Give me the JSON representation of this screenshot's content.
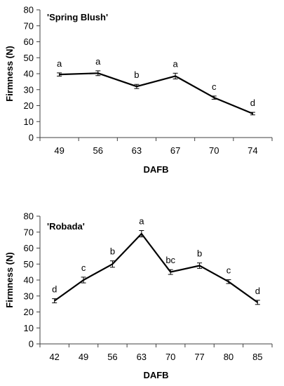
{
  "chart_data": [
    {
      "type": "line",
      "title": "'Spring Blush'",
      "xlabel": "DAFB",
      "ylabel": "Firmness (N)",
      "ylim": [
        0,
        80
      ],
      "yticks": [
        0,
        10,
        20,
        30,
        40,
        50,
        60,
        70,
        80
      ],
      "categories": [
        "49",
        "56",
        "63",
        "67",
        "70",
        "74"
      ],
      "values": [
        39.5,
        40.3,
        32,
        38.5,
        25,
        15
      ],
      "errors": [
        1.0,
        1.5,
        1.3,
        1.8,
        1.0,
        0.8
      ],
      "labels": [
        "a",
        "a",
        "b",
        "a",
        "c",
        "d"
      ],
      "grid": false,
      "legend": "none"
    },
    {
      "type": "line",
      "title": "'Robada'",
      "xlabel": "DAFB",
      "ylabel": "Firmness (N)",
      "ylim": [
        0,
        80
      ],
      "yticks": [
        0,
        10,
        20,
        30,
        40,
        50,
        60,
        70,
        80
      ],
      "categories": [
        "42",
        "49",
        "56",
        "63",
        "70",
        "77",
        "80",
        "85"
      ],
      "values": [
        27,
        40,
        50,
        69,
        45,
        49,
        39,
        26
      ],
      "errors": [
        1.3,
        1.8,
        2.0,
        2.0,
        1.5,
        1.7,
        1.2,
        1.3
      ],
      "labels": [
        "d",
        "c",
        "b",
        "a",
        "bc",
        "b",
        "c",
        "d"
      ],
      "grid": false,
      "legend": "none"
    }
  ]
}
